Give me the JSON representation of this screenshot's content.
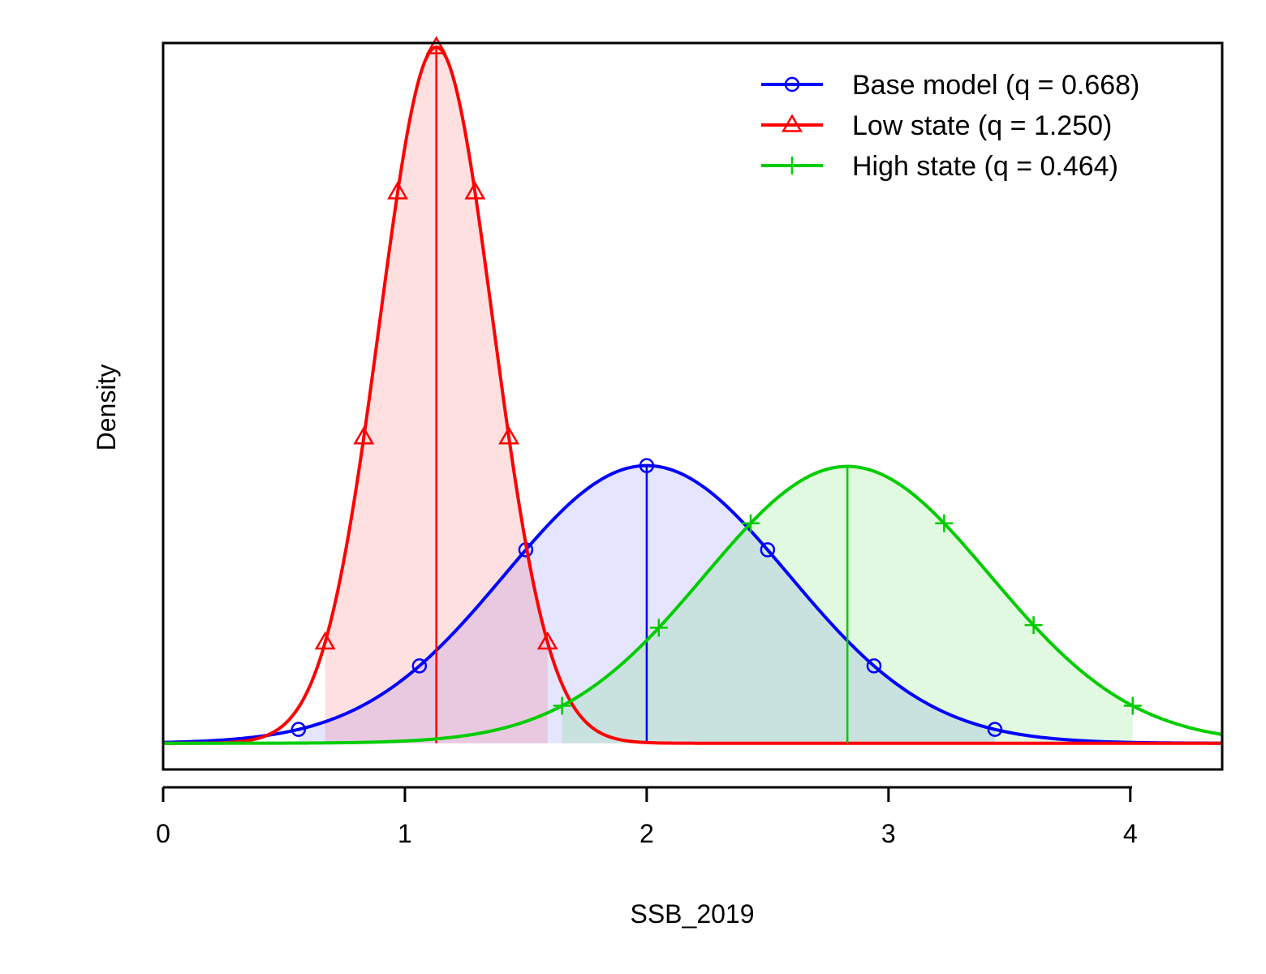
{
  "chart_data": {
    "type": "line",
    "xlabel": "SSB_2019",
    "ylabel": "Density",
    "xlim": [
      0,
      4.38
    ],
    "ylim": [
      -0.064,
      1.71
    ],
    "x_ticks": [
      "0",
      "1",
      "2",
      "3",
      "4"
    ],
    "x_tick_values": [
      0,
      1,
      2,
      3,
      4
    ],
    "y_ticks_shown": false,
    "grid": false,
    "legend_position": "top-right",
    "series": [
      {
        "name": "Base model (q = 0.668)",
        "color": "#0000ff",
        "fill": "rgba(0,0,255,0.10)",
        "marker": "circle-icon",
        "mean": 2.0,
        "sd": 0.588,
        "peak_density": 0.678,
        "shaded_interval": [
          0.56,
          3.44
        ],
        "marker_x": [
          0.56,
          1.06,
          1.5,
          2.0,
          2.5,
          2.94,
          3.44
        ]
      },
      {
        "name": "Low state (q = 1.250)",
        "color": "#ff0000",
        "fill": "rgba(255,0,0,0.12)",
        "marker": "triangle-icon",
        "mean": 1.13,
        "sd": 0.234,
        "peak_density": 1.7,
        "shaded_interval": [
          0.67,
          1.59
        ],
        "marker_x": [
          0.67,
          0.83,
          0.97,
          1.13,
          1.29,
          1.43,
          1.59
        ]
      },
      {
        "name": "High state (q = 0.464)",
        "color": "#00cc00",
        "fill": "rgba(0,204,0,0.12)",
        "marker": "plus-icon",
        "mean": 2.83,
        "sd": 0.59,
        "peak_density": 0.676,
        "shaded_interval": [
          1.65,
          4.01
        ],
        "marker_x": [
          1.65,
          2.05,
          2.43,
          3.23,
          3.6,
          4.01
        ]
      }
    ]
  }
}
